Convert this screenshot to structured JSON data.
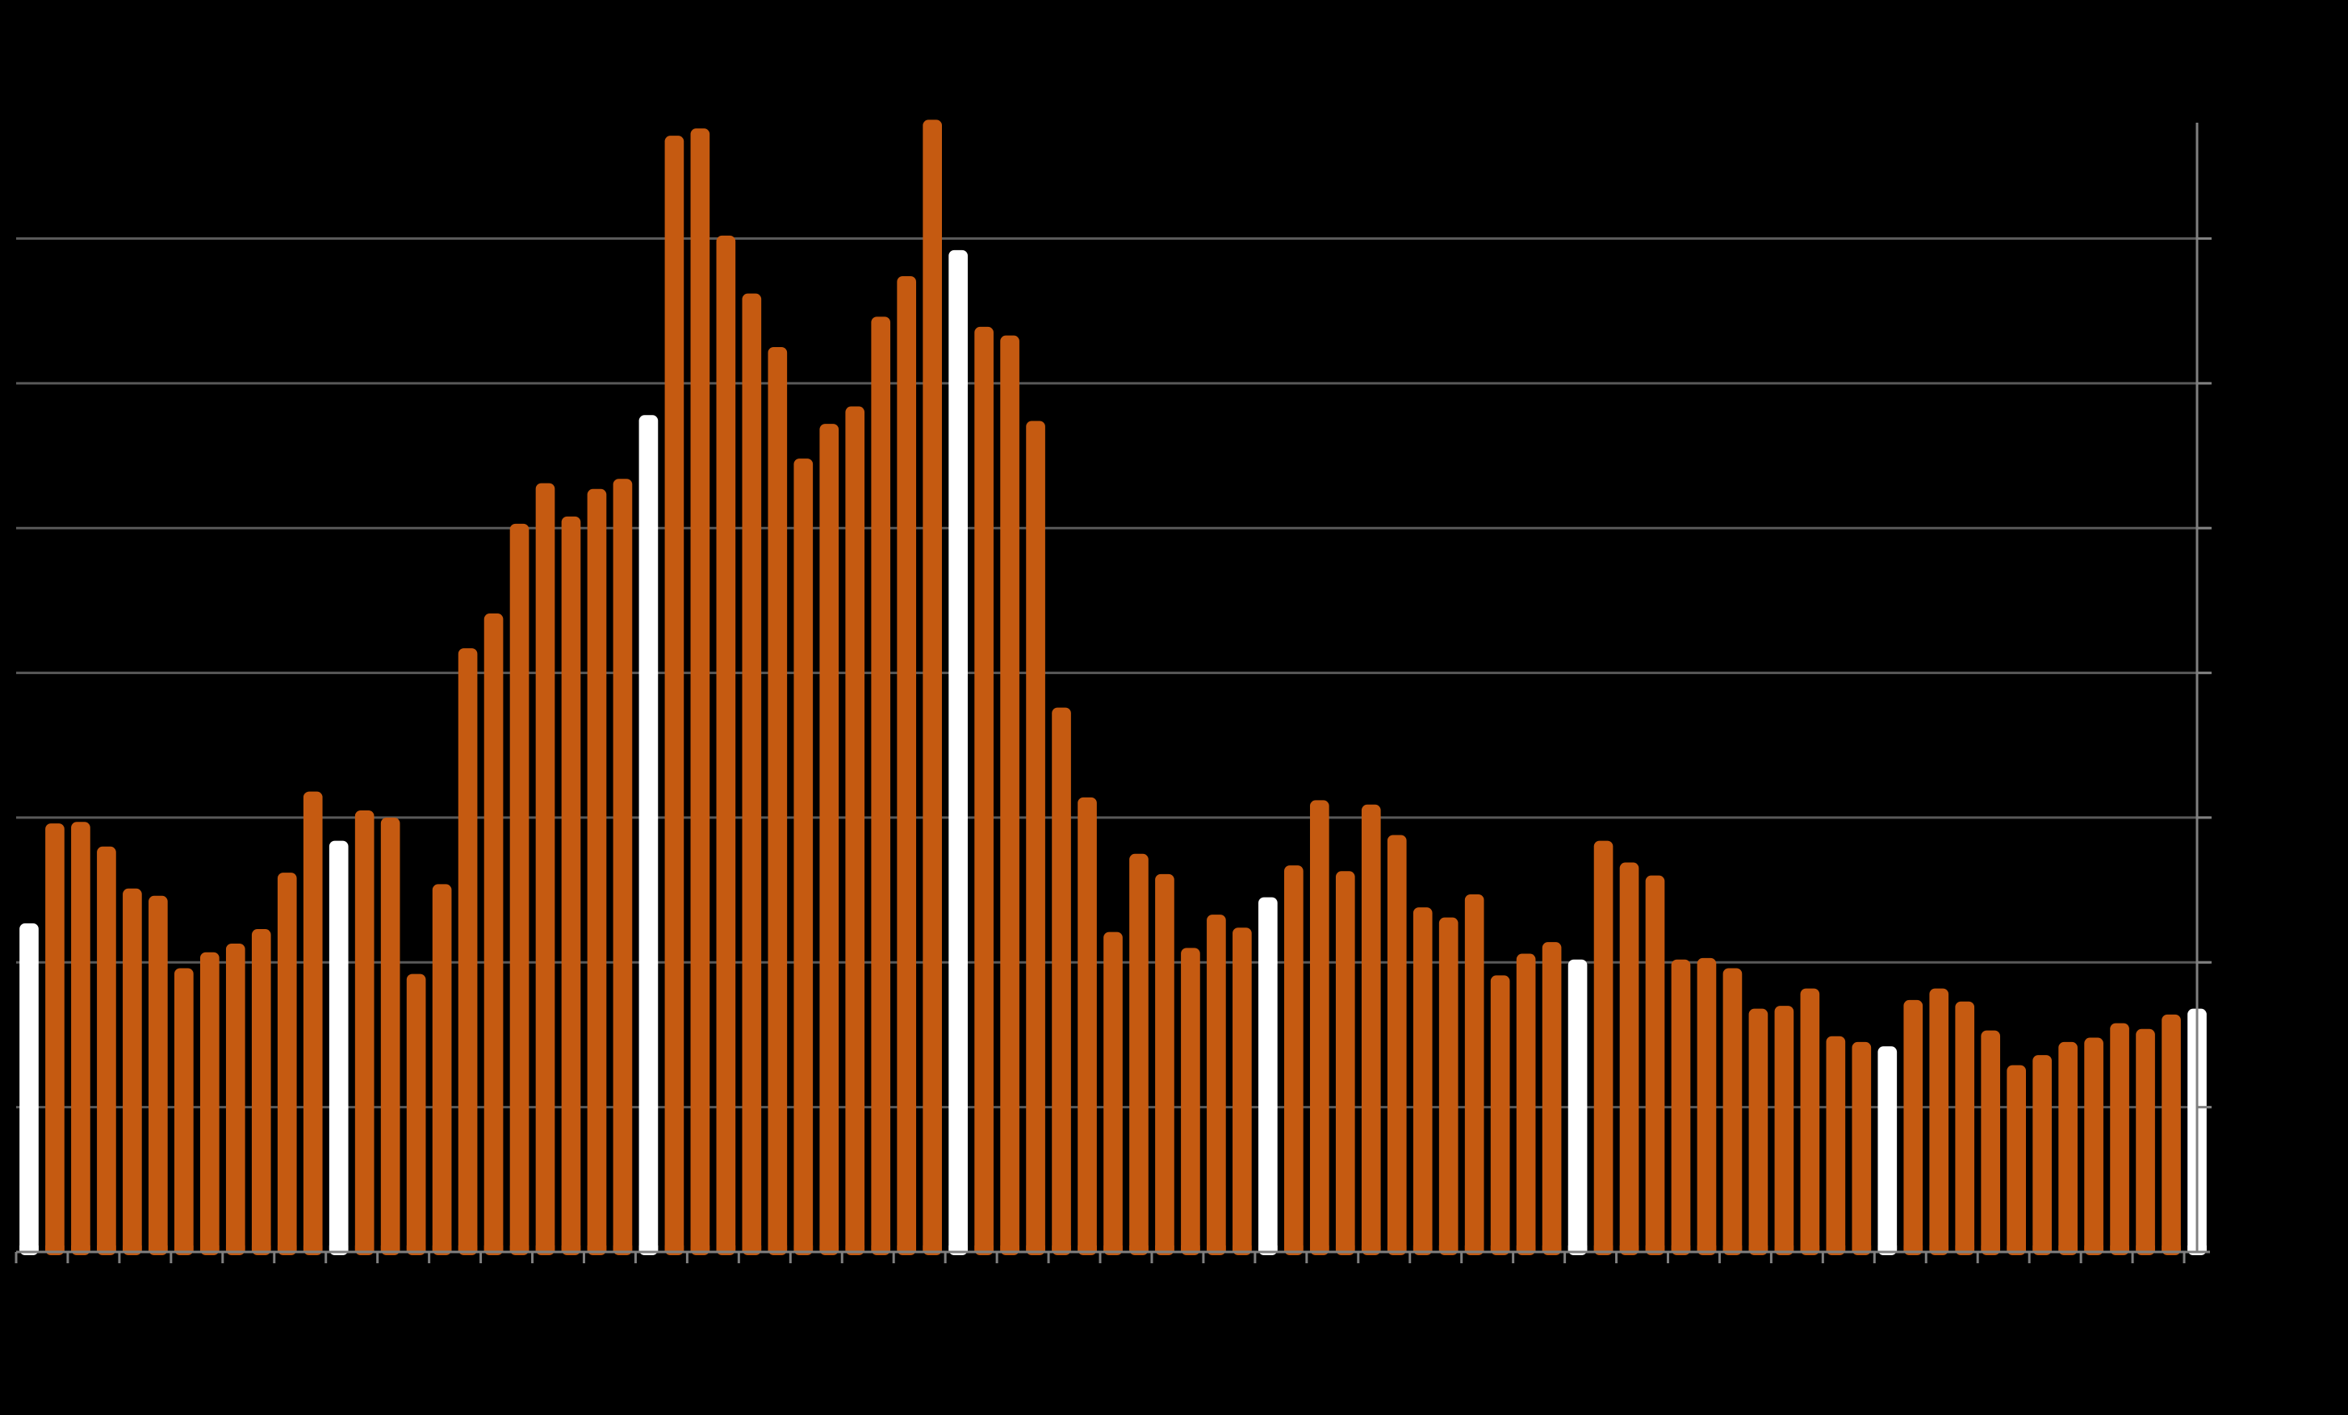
{
  "chart_data": {
    "type": "bar",
    "title": "",
    "xlabel": "",
    "ylabel": "",
    "ylim": [
      0,
      7.8
    ],
    "yticks": [
      1,
      2,
      3,
      4,
      5,
      6,
      7
    ],
    "grid": true,
    "legend": "none",
    "colors": {
      "background": "#000000",
      "bar": "#C55A11",
      "highlight": "#FFFFFF",
      "grid": "#595959",
      "axis": "#808080"
    },
    "highlight_indices": [
      0,
      12,
      24,
      36,
      48,
      60,
      72,
      84
    ],
    "values": [
      2.27,
      2.96,
      2.97,
      2.8,
      2.51,
      2.46,
      1.96,
      2.07,
      2.13,
      2.23,
      2.62,
      3.18,
      2.84,
      3.05,
      3.0,
      1.92,
      2.54,
      4.17,
      4.41,
      5.03,
      5.31,
      5.08,
      5.27,
      5.34,
      5.78,
      7.71,
      7.76,
      7.02,
      6.62,
      6.25,
      5.48,
      5.72,
      5.84,
      6.46,
      6.74,
      7.82,
      6.92,
      6.39,
      6.33,
      5.74,
      3.76,
      3.14,
      2.21,
      2.75,
      2.61,
      2.1,
      2.33,
      2.24,
      2.45,
      2.67,
      3.12,
      2.63,
      3.09,
      2.88,
      2.38,
      2.31,
      2.47,
      1.91,
      2.06,
      2.14,
      2.02,
      2.84,
      2.69,
      2.6,
      2.02,
      2.03,
      1.96,
      1.68,
      1.7,
      1.82,
      1.49,
      1.45,
      1.42,
      1.74,
      1.82,
      1.73,
      1.53,
      1.29,
      1.36,
      1.45,
      1.48,
      1.58,
      1.54,
      1.64,
      1.68
    ]
  }
}
